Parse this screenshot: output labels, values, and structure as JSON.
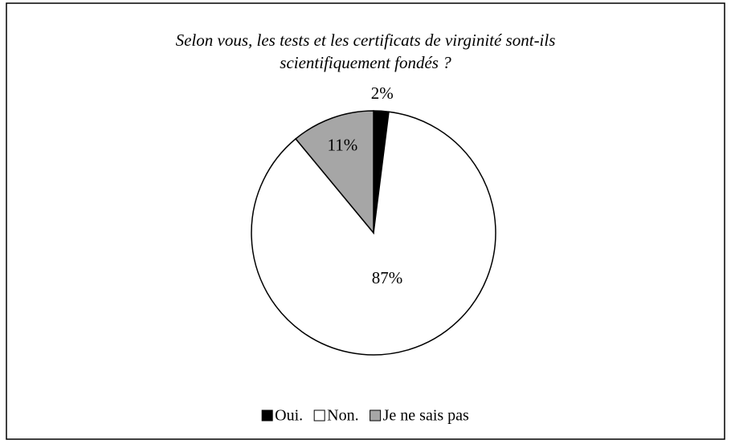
{
  "chart_data": {
    "type": "pie",
    "title": [
      "Selon vous, les tests et les certificats de virginité sont-ils",
      "scientifiquement fondés ?"
    ],
    "categories": [
      "Oui.",
      "Non.",
      "Je ne sais pas"
    ],
    "values": [
      2,
      87,
      11
    ],
    "value_labels": [
      "2%",
      "87%",
      "11%"
    ],
    "colors": [
      "#000000",
      "#ffffff",
      "#a6a6a6"
    ],
    "legend": "bottom"
  }
}
